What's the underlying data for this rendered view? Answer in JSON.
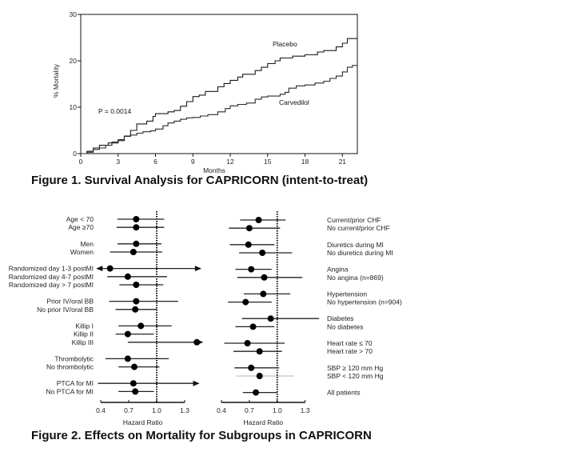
{
  "chart_data": [
    {
      "type": "line",
      "chart_kind": "kaplan-meier",
      "title": "Figure 1. Survival Analysis for CAPRICORN (intent-to-treat)",
      "xlabel": "Months",
      "ylabel": "% Mortality",
      "xlim": [
        0,
        22.2
      ],
      "ylim": [
        0,
        30
      ],
      "xticks": [
        "0",
        "3",
        "6",
        "9",
        "12",
        "15",
        "18",
        "21"
      ],
      "yticks": [
        "0",
        "10",
        "20",
        "30"
      ],
      "annotation": "P = 0.0014",
      "grid": false,
      "series": [
        {
          "name": "Placebo",
          "points": [
            [
              0,
              0
            ],
            [
              0.5,
              0.5
            ],
            [
              1,
              1.2
            ],
            [
              1.5,
              1.8
            ],
            [
              2.2,
              2.3
            ],
            [
              3,
              2.8
            ],
            [
              3.5,
              3.8
            ],
            [
              4,
              5
            ],
            [
              4.5,
              6.4
            ],
            [
              5.3,
              7
            ],
            [
              5.8,
              8
            ],
            [
              6,
              8.6
            ],
            [
              7,
              9
            ],
            [
              7.5,
              9.3
            ],
            [
              8,
              10.2
            ],
            [
              8.5,
              11.2
            ],
            [
              9,
              12.3
            ],
            [
              9.5,
              12.6
            ],
            [
              10,
              13.4
            ],
            [
              11,
              14.4
            ],
            [
              11.5,
              15.1
            ],
            [
              12,
              15.8
            ],
            [
              12.6,
              16.5
            ],
            [
              13,
              17.1
            ],
            [
              14,
              17.9
            ],
            [
              14.5,
              18.6
            ],
            [
              15,
              19.4
            ],
            [
              15.6,
              20
            ],
            [
              16,
              20.6
            ],
            [
              17,
              21
            ],
            [
              18,
              21.3
            ],
            [
              19,
              21.9
            ],
            [
              19.5,
              22.2
            ],
            [
              20.5,
              23
            ],
            [
              21,
              23.8
            ],
            [
              21.4,
              24.8
            ],
            [
              22.2,
              24.8
            ]
          ]
        },
        {
          "name": "Carvedilol",
          "points": [
            [
              0,
              0
            ],
            [
              0.5,
              0.3
            ],
            [
              1,
              0.9
            ],
            [
              1.5,
              1.2
            ],
            [
              2,
              1.8
            ],
            [
              2.5,
              2.5
            ],
            [
              3,
              3
            ],
            [
              3.5,
              3.7
            ],
            [
              4,
              4
            ],
            [
              4.5,
              4.4
            ],
            [
              5,
              4.7
            ],
            [
              5.6,
              4.9
            ],
            [
              6,
              5.3
            ],
            [
              6.6,
              6
            ],
            [
              7,
              6.6
            ],
            [
              7.5,
              7
            ],
            [
              8,
              7.4
            ],
            [
              8.5,
              7.7
            ],
            [
              9,
              7.8
            ],
            [
              9.6,
              8.1
            ],
            [
              10.2,
              8.4
            ],
            [
              11,
              9
            ],
            [
              11.6,
              9.7
            ],
            [
              12,
              10.3
            ],
            [
              12.6,
              10.6
            ],
            [
              13.3,
              10.9
            ],
            [
              14,
              11.7
            ],
            [
              14.5,
              12.2
            ],
            [
              15,
              12.4
            ],
            [
              16,
              12.8
            ],
            [
              16.4,
              13.2
            ],
            [
              16.7,
              14.1
            ],
            [
              17.3,
              14.6
            ],
            [
              18,
              14.8
            ],
            [
              18.8,
              15.2
            ],
            [
              19.5,
              15.6
            ],
            [
              20,
              16.2
            ],
            [
              20.5,
              16.7
            ],
            [
              21,
              17.6
            ],
            [
              21.4,
              18.6
            ],
            [
              21.8,
              19
            ],
            [
              22.2,
              19
            ]
          ]
        }
      ]
    },
    {
      "type": "forest",
      "title": "Figure 2. Effects on Mortality for Subgroups in CAPRICORN",
      "panel": "left",
      "xlabel": "Hazard Ratio",
      "xlim": [
        0.4,
        1.3
      ],
      "xticks": [
        "0.4",
        "0.7",
        "1.0",
        "1.3"
      ],
      "reference_line": 1.0,
      "rows": [
        {
          "label": "Age < 70",
          "hr": 0.78,
          "lo": 0.58,
          "hi": 1.08,
          "group": 0
        },
        {
          "label": "Age ≥70",
          "hr": 0.78,
          "lo": 0.57,
          "hi": 1.08,
          "group": 0
        },
        {
          "label": "Men",
          "hr": 0.78,
          "lo": 0.58,
          "hi": 1.05,
          "group": 1
        },
        {
          "label": "Women",
          "hr": 0.75,
          "lo": 0.5,
          "hi": 1.06,
          "group": 1
        },
        {
          "label": "Randomized day 1-3 postMI",
          "hr": 0.5,
          "lo": 0.36,
          "hi": 1.47,
          "group": 2,
          "arrow_left": true,
          "arrow_right": true
        },
        {
          "label": "Randomized day 4-7 postMI",
          "hr": 0.69,
          "lo": 0.47,
          "hi": 1.11,
          "group": 2
        },
        {
          "label": "Randomized day > 7 postMI",
          "hr": 0.78,
          "lo": 0.6,
          "hi": 1.07,
          "group": 2
        },
        {
          "label": "Prior IV/oral BB",
          "hr": 0.78,
          "lo": 0.49,
          "hi": 1.23,
          "group": 3
        },
        {
          "label": "No prior IV/oral BB",
          "hr": 0.77,
          "lo": 0.56,
          "hi": 1.0,
          "group": 3
        },
        {
          "label": "Killip I",
          "hr": 0.83,
          "lo": 0.59,
          "hi": 1.16,
          "group": 4
        },
        {
          "label": "Killip II",
          "hr": 0.69,
          "lo": 0.56,
          "hi": 0.97,
          "group": 4
        },
        {
          "label": "Killip III",
          "hr": 1.43,
          "lo": 0.69,
          "hi": 1.49,
          "group": 4,
          "arrow_right": true
        },
        {
          "label": "Thrombolytic",
          "hr": 0.69,
          "lo": 0.45,
          "hi": 1.13,
          "group": 5
        },
        {
          "label": "No thrombolytic",
          "hr": 0.76,
          "lo": 0.59,
          "hi": 1.03,
          "group": 5
        },
        {
          "label": "PTCA for MI",
          "hr": 0.75,
          "lo": 0.37,
          "hi": 1.45,
          "group": 6,
          "arrow_right": true
        },
        {
          "label": "No PTCA for MI",
          "hr": 0.77,
          "lo": 0.59,
          "hi": 0.97,
          "group": 6
        }
      ]
    },
    {
      "type": "forest",
      "panel": "right",
      "xlabel": "Hazard Ratio",
      "xlim": [
        0.4,
        1.3
      ],
      "xticks": [
        "0.4",
        "0.7",
        "1.0",
        "1.3"
      ],
      "reference_line": 1.0,
      "rows": [
        {
          "label": "Current/prior CHF",
          "hr": 0.8,
          "lo": 0.6,
          "hi": 1.09,
          "group": 0
        },
        {
          "label": "No current/prior CHF",
          "hr": 0.7,
          "lo": 0.48,
          "hi": 1.03,
          "group": 0
        },
        {
          "label": "Diuretics during MI",
          "hr": 0.69,
          "lo": 0.49,
          "hi": 0.97,
          "group": 1
        },
        {
          "label": "No diuretics during MI",
          "hr": 0.84,
          "lo": 0.59,
          "hi": 1.16,
          "group": 1
        },
        {
          "label": "Angina",
          "hr": 0.72,
          "lo": 0.55,
          "hi": 0.94,
          "group": 2
        },
        {
          "label": "No angina (n=869)",
          "hr": 0.86,
          "lo": 0.57,
          "hi": 1.27,
          "group": 2
        },
        {
          "label": "Hypertension",
          "hr": 0.85,
          "lo": 0.64,
          "hi": 1.14,
          "group": 3
        },
        {
          "label": "No hypertension (n=904)",
          "hr": 0.66,
          "lo": 0.47,
          "hi": 0.94,
          "group": 3
        },
        {
          "label": "Diabetes",
          "hr": 0.93,
          "lo": 0.62,
          "hi": 1.45,
          "group": 4
        },
        {
          "label": "No diabetes",
          "hr": 0.74,
          "lo": 0.55,
          "hi": 0.97,
          "group": 4
        },
        {
          "label": "Heart rate ≤ 70",
          "hr": 0.68,
          "lo": 0.43,
          "hi": 1.08,
          "group": 5
        },
        {
          "label": "Heart rate > 70",
          "hr": 0.81,
          "lo": 0.53,
          "hi": 1.05,
          "group": 5
        },
        {
          "label": "SBP ≥ 120 mm Hg",
          "hr": 0.72,
          "lo": 0.54,
          "hi": 1.02,
          "group": 6
        },
        {
          "label": "SBP < 120 mm Hg",
          "hr": 0.81,
          "lo": 0.56,
          "hi": 1.18,
          "group": 6,
          "thin": true
        },
        {
          "label": "All patients",
          "hr": 0.77,
          "lo": 0.63,
          "hi": 1.0,
          "group": 7
        }
      ]
    }
  ],
  "captions": {
    "figure1": "Figure 1. Survival Analysis for CAPRICORN (intent-to-treat)",
    "figure2": "Figure 2. Effects on Mortality for Subgroups in CAPRICORN"
  },
  "colors": {
    "ink": "#111111",
    "line": "#222222",
    "thin_line": "#999999"
  }
}
